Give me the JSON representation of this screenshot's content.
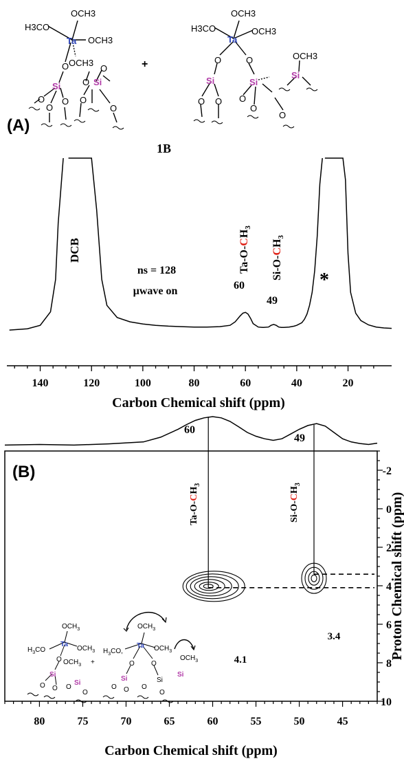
{
  "panel_a": {
    "label": "(A)",
    "compound_label": "1B",
    "plus": "+",
    "annotations": {
      "dcb": "DCB",
      "ns": "ns = 128",
      "uwave": "µwave on",
      "ta_peak_label": "Ta-O-CH3",
      "si_peak_label": "Si-O-CH3",
      "ta_shift": "60",
      "si_shift": "49",
      "star": "*"
    },
    "structure_text": {
      "och3": "OCH3",
      "h3co": "H3CO",
      "ta": "Ta",
      "si": "Si",
      "o": "O"
    }
  },
  "panel_b": {
    "label": "(B)",
    "top_peak_60": "60",
    "top_peak_49": "49",
    "ta_label": "Ta-O-CH3",
    "si_label": "Si-O-CH3",
    "proton_41": "4.1",
    "proton_34": "3.4"
  },
  "chart_data": [
    {
      "type": "line",
      "title": "",
      "xlabel": "Carbon Chemical shift (ppm)",
      "ylabel": "",
      "xlim": [
        153,
        3
      ],
      "x_reversed": true,
      "xticks": [
        140,
        120,
        100,
        80,
        60,
        40,
        20
      ],
      "series": [
        {
          "x": [
            152,
            145,
            140,
            136,
            134,
            133,
            131,
            129,
            127,
            125,
            123,
            121,
            120,
            118,
            116,
            114,
            110,
            105,
            100,
            95,
            90,
            85,
            80,
            75,
            70,
            66,
            64,
            62,
            61,
            60,
            59,
            58,
            57,
            55,
            53,
            51,
            50,
            49,
            48,
            47,
            46,
            45,
            43,
            41,
            40,
            38,
            37,
            36,
            35,
            34,
            33,
            32,
            31,
            30,
            29,
            28,
            27,
            26,
            25,
            24,
            23,
            22,
            21,
            20,
            19,
            17,
            15,
            12,
            9,
            6,
            3
          ],
          "y": [
            0.03,
            0.06,
            0.14,
            0.45,
            1.2,
            2.5,
            4,
            4,
            4,
            4,
            4,
            4,
            4,
            2.8,
            1.2,
            0.6,
            0.32,
            0.22,
            0.17,
            0.14,
            0.12,
            0.11,
            0.1,
            0.1,
            0.11,
            0.14,
            0.22,
            0.36,
            0.42,
            0.44,
            0.4,
            0.3,
            0.18,
            0.1,
            0.09,
            0.1,
            0.14,
            0.16,
            0.14,
            0.1,
            0.09,
            0.09,
            0.1,
            0.12,
            0.14,
            0.2,
            0.28,
            0.4,
            0.6,
            0.9,
            1.4,
            2.2,
            3.4,
            4,
            4,
            4,
            4,
            4,
            4,
            4,
            4,
            4,
            3.5,
            1.8,
            0.9,
            0.42,
            0.25,
            0.15,
            0.1,
            0.08,
            0.07
          ]
        }
      ],
      "annotations": [
        "DCB",
        "ns = 128",
        "µwave on",
        "Ta-O-CH3",
        "Si-O-CH3",
        "60",
        "49",
        "*"
      ]
    },
    {
      "type": "heatmap",
      "title": "",
      "xlabel": "Carbon Chemical shift (ppm)",
      "ylabel": "Proton Chemical shift (ppm)",
      "xlim": [
        84,
        41
      ],
      "ylim": [
        -3,
        10
      ],
      "x_reversed": true,
      "y_reversed": true,
      "xticks": [
        80,
        75,
        70,
        65,
        60,
        55,
        50,
        45
      ],
      "yticks": [
        -2,
        0,
        2,
        4,
        6,
        8,
        10
      ],
      "peaks": [
        {
          "label": "Ta-O-CH3",
          "carbon_ppm": 60.5,
          "proton_ppm": 4.1
        },
        {
          "label": "Si-O-CH3",
          "carbon_ppm": 48.3,
          "proton_ppm": 3.4
        }
      ],
      "projection": {
        "x": [
          84,
          80,
          76,
          72,
          68,
          66,
          64,
          63,
          62,
          61,
          60,
          59,
          58,
          57,
          56,
          55,
          54,
          53,
          52,
          51,
          50,
          49,
          48,
          47,
          46,
          45,
          44,
          43,
          42,
          41
        ],
        "y": [
          0.1,
          0.12,
          0.1,
          0.14,
          0.2,
          0.35,
          0.6,
          0.75,
          0.88,
          0.96,
          1.0,
          0.96,
          0.85,
          0.68,
          0.5,
          0.38,
          0.3,
          0.25,
          0.3,
          0.45,
          0.6,
          0.72,
          0.78,
          0.7,
          0.5,
          0.3,
          0.2,
          0.15,
          0.12,
          0.16
        ]
      },
      "annotations": [
        "60",
        "49",
        "4.1",
        "3.4"
      ]
    }
  ]
}
